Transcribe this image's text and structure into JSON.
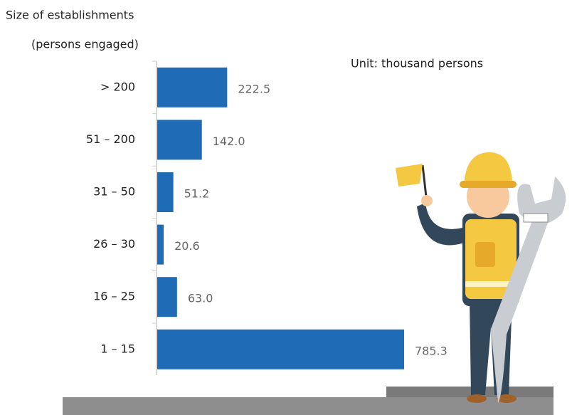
{
  "chart_data": {
    "type": "bar",
    "orientation": "horizontal",
    "title": "Size of establishments",
    "subtitle": "(persons engaged)",
    "unit": "Unit: thousand persons",
    "categories": [
      "> 200",
      "51 – 200",
      "31 – 50",
      "26 – 30",
      "16 – 25",
      "1 – 15"
    ],
    "values": [
      222.5,
      142.0,
      51.2,
      20.6,
      63.0,
      785.3
    ],
    "value_labels": [
      "222.5",
      "142.0",
      "51.2",
      "20.6",
      "63.0",
      "785.3"
    ],
    "color": "#1f6bb5"
  }
}
